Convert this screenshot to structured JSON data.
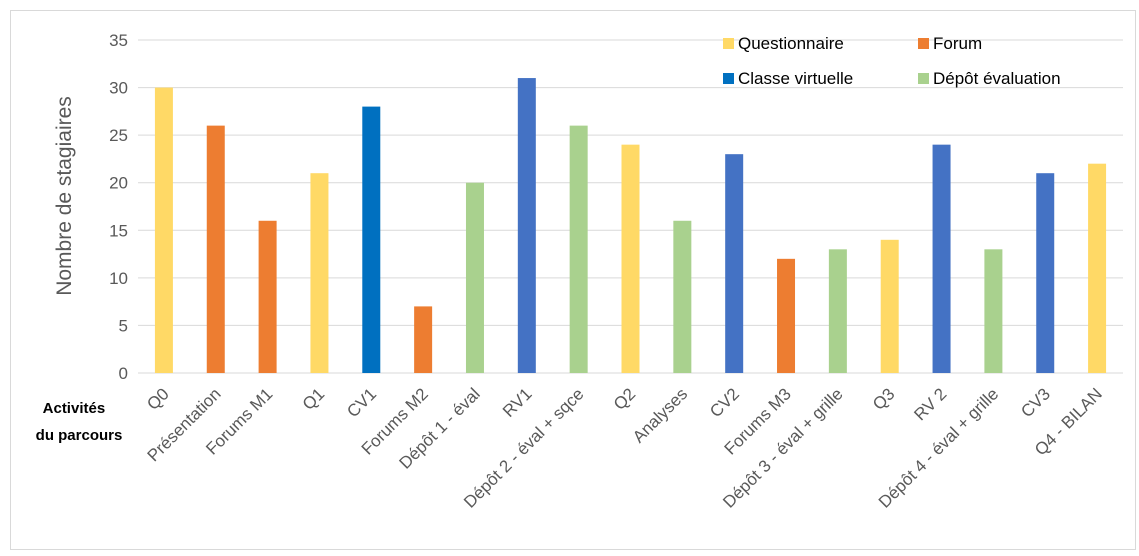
{
  "chart_data": {
    "type": "bar",
    "title": "",
    "xlabel": "Activités du parcours",
    "xlabel_lines": [
      "Activités",
      "du parcours"
    ],
    "ylabel": "Nombre de stagiaires",
    "ylim": [
      0,
      35
    ],
    "yticks": [
      "0",
      "5",
      "10",
      "15",
      "20",
      "25",
      "30",
      "35"
    ],
    "grid": true,
    "legend_position": "top-right",
    "categories": [
      "Q0",
      "Présentation",
      "Forums M1",
      "Q1",
      "CV1",
      "Forums M2",
      "Dépôt 1 - éval",
      "RV1",
      "Dépôt 2 - éval + sqce",
      "Q2",
      "Analyses",
      "CV2",
      "Forums M3",
      "Dépôt 3 - éval + grille",
      "Q3",
      "RV 2",
      "Dépôt 4 - éval + grille",
      "CV3",
      "Q4 - BILAN"
    ],
    "values": [
      30,
      26,
      16,
      21,
      28,
      7,
      20,
      31,
      26,
      24,
      16,
      23,
      12,
      13,
      14,
      24,
      13,
      21,
      22
    ],
    "bar_colors": [
      "#FFD966",
      "#ED7D31",
      "#ED7D31",
      "#FFD966",
      "#0070C0",
      "#ED7D31",
      "#A9D18E",
      "#4472C4",
      "#A9D18E",
      "#FFD966",
      "#A9D18E",
      "#4472C4",
      "#ED7D31",
      "#A9D18E",
      "#FFD966",
      "#4472C4",
      "#A9D18E",
      "#4472C4",
      "#FFD966"
    ],
    "legend": [
      {
        "label": "Questionnaire",
        "color": "#FFD966"
      },
      {
        "label": "Forum",
        "color": "#ED7D31"
      },
      {
        "label": "Classe virtuelle",
        "color": "#0070C0"
      },
      {
        "label": "Dépôt évaluation",
        "color": "#A9D18E"
      }
    ]
  }
}
